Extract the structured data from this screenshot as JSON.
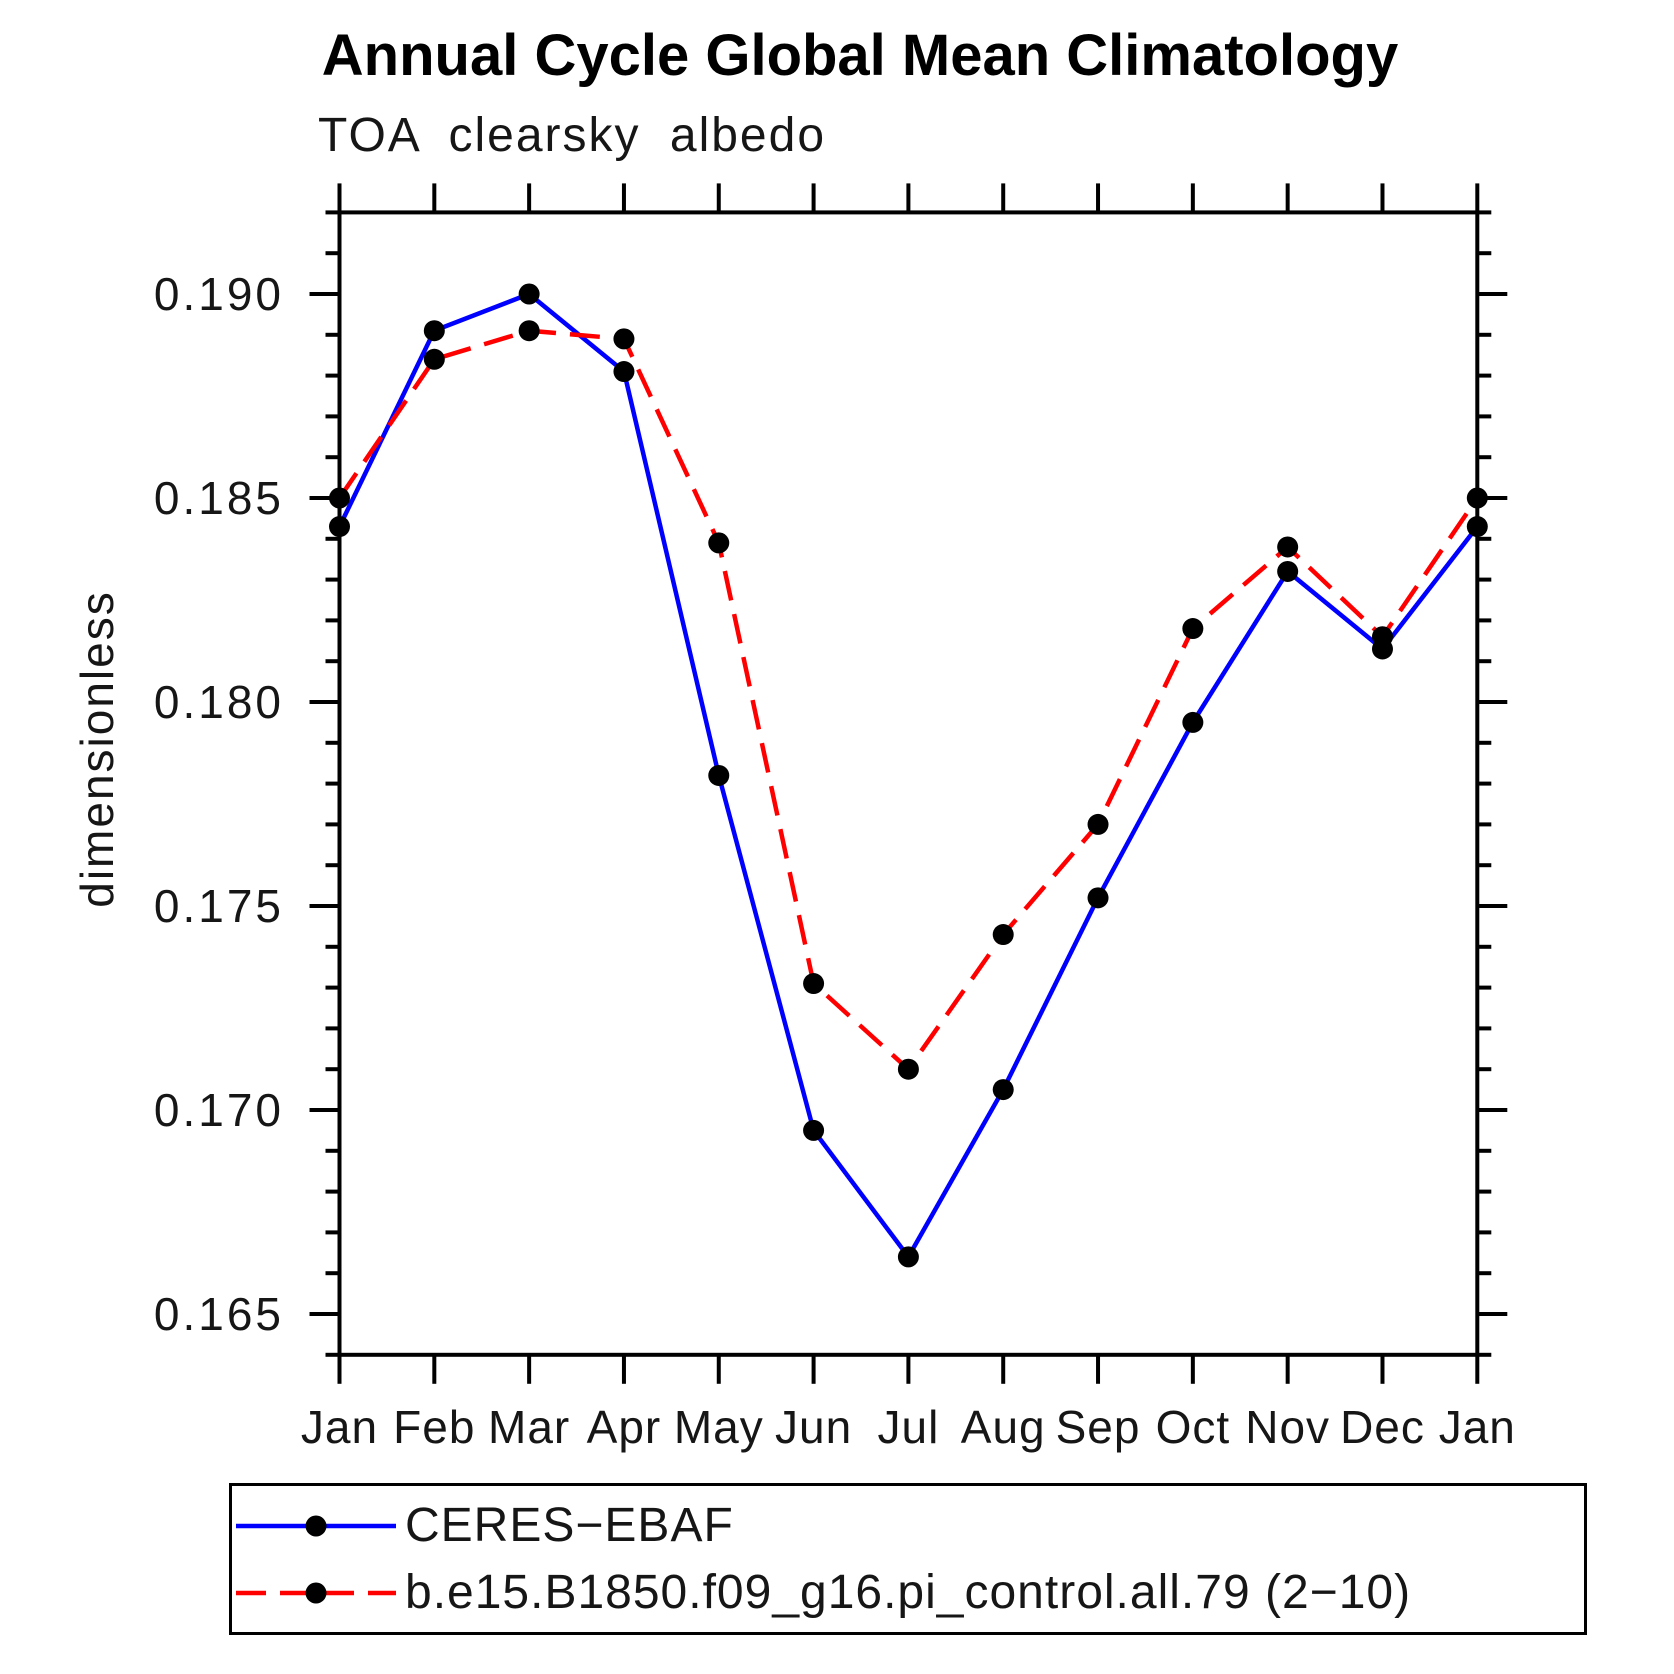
{
  "title": "Annual Cycle Global Mean Climatology",
  "subtitle": "TOA clearsky albedo",
  "chart_data": {
    "type": "line",
    "categories": [
      "Jan",
      "Feb",
      "Mar",
      "Apr",
      "May",
      "Jun",
      "Jul",
      "Aug",
      "Sep",
      "Oct",
      "Nov",
      "Dec",
      "Jan"
    ],
    "series": [
      {
        "name": "CERES−EBAF",
        "color": "#0000ff",
        "line_style": "solid",
        "marker": "filled-circle",
        "marker_color": "#000000",
        "values": [
          0.1843,
          0.1891,
          0.19,
          0.1881,
          0.1782,
          0.1695,
          0.1664,
          0.1705,
          0.1752,
          0.1795,
          0.1832,
          0.1813,
          0.1843
        ]
      },
      {
        "name": "b.e15.B1850.f09_g16.pi_control.all.79 (2−10)",
        "color": "#ff0000",
        "line_style": "dashed",
        "marker": "filled-circle",
        "marker_color": "#000000",
        "values": [
          0.185,
          0.1884,
          0.1891,
          0.1889,
          0.1839,
          0.1731,
          0.171,
          0.1743,
          0.177,
          0.1818,
          0.1838,
          0.1816,
          0.185
        ]
      }
    ],
    "xlabel": "",
    "ylabel": "dimensionless",
    "ylim": [
      0.164,
      0.192
    ],
    "ytick_values": [
      0.165,
      0.17,
      0.175,
      0.18,
      0.185,
      0.19
    ],
    "ytick_labels": [
      "0.165",
      "0.170",
      "0.175",
      "0.180",
      "0.185",
      "0.190"
    ],
    "y_minor_tick_step": 0.001,
    "grid": false,
    "legend_position": "bottom",
    "axis_color": "#000000"
  }
}
